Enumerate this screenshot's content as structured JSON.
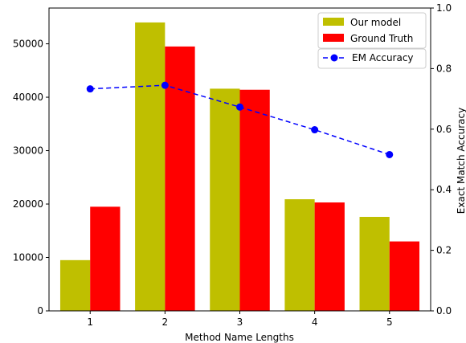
{
  "chart_data": {
    "type": "bar",
    "categories": [
      "1",
      "2",
      "3",
      "4",
      "5"
    ],
    "series": [
      {
        "name": "Our model",
        "values": [
          9500,
          54000,
          41600,
          20900,
          17600
        ],
        "color": "#bfbf00"
      },
      {
        "name": "Ground Truth",
        "values": [
          19500,
          49500,
          41400,
          20300,
          13000
        ],
        "color": "#ff0000"
      }
    ],
    "line_series": {
      "name": "EM Accuracy",
      "values": [
        0.733,
        0.745,
        0.673,
        0.598,
        0.516
      ],
      "color": "#0000ff",
      "style": "dashed",
      "marker": "circle"
    },
    "xlabel": "Method Name Lengths",
    "ylabel": "",
    "y2label": "Exact Match Accuracy",
    "ylim": [
      0,
      56700
    ],
    "y2lim": [
      0,
      1.0
    ],
    "yticks": [
      0,
      10000,
      20000,
      30000,
      40000,
      50000
    ],
    "y2ticks": [
      0.0,
      0.2,
      0.4,
      0.6,
      0.8,
      1.0
    ],
    "legend_placement": "top-right",
    "grid": false
  }
}
